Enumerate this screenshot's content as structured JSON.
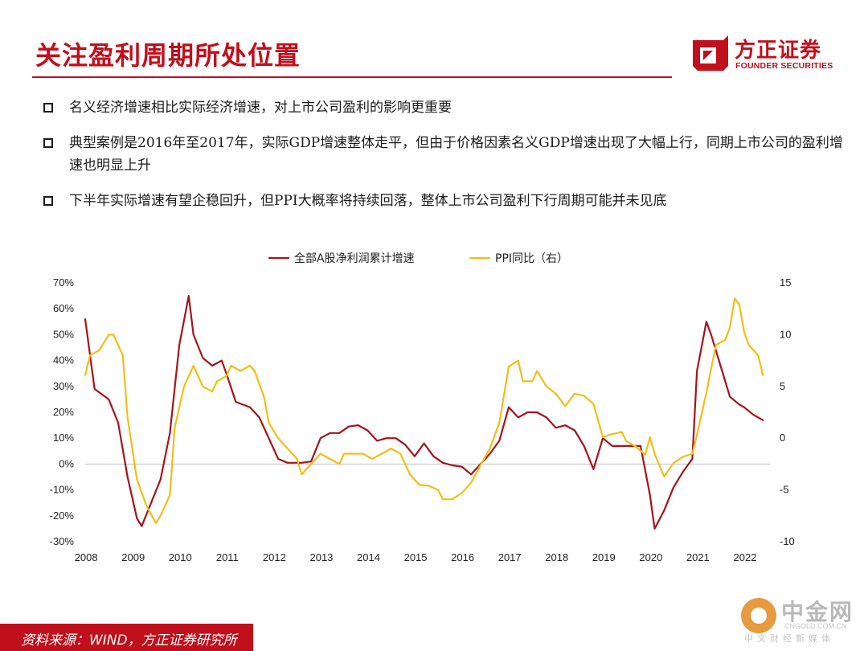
{
  "header": {
    "title": "关注盈利周期所处位置",
    "logo_cn": "方正证券",
    "logo_en": "FOUNDER SECURITIES"
  },
  "bullets": [
    "名义经济增速相比实际经济增速，对上市公司盈利的影响更重要",
    "典型案例是2016年至2017年，实际GDP增速整体走平，但由于价格因素名义GDP增速出现了大幅上行，同期上市公司的盈利增速也明显上升",
    "下半年实际增速有望企稳回升，但PPI大概率将持续回落，整体上市公司盈利下行周期可能并未见底"
  ],
  "footer": {
    "source": "资料来源：WIND，方正证券研究所"
  },
  "watermark": {
    "brand": "中金网",
    "url": "CNGOLD.COM.CN",
    "sub": "中文财经新媒体"
  },
  "colors": {
    "brand_red": "#c0101c",
    "series_profit": "#a5141c",
    "series_ppi": "#f2be1a"
  },
  "chart_data": {
    "type": "line",
    "title": "",
    "legend": [
      "全部A股净利润累计增速",
      "PPI同比（右）"
    ],
    "legend_position": "top",
    "x_ticks": [
      "2008",
      "2009",
      "2010",
      "2011",
      "2012",
      "2013",
      "2014",
      "2015",
      "2016",
      "2017",
      "2018",
      "2019",
      "2020",
      "2021",
      "2022"
    ],
    "y_left": {
      "min": -30,
      "max": 70,
      "ticks": [
        "70%",
        "60%",
        "50%",
        "40%",
        "30%",
        "20%",
        "10%",
        "0%",
        "-10%",
        "-20%",
        "-30%"
      ]
    },
    "y_right": {
      "min": -10,
      "max": 15,
      "ticks": [
        "15",
        "10",
        "5",
        "0",
        "-5",
        "-10"
      ]
    },
    "grid": false,
    "series": [
      {
        "name": "全部A股净利润累计增速",
        "axis": "left",
        "points": [
          [
            2008.0,
            56
          ],
          [
            2008.2,
            29
          ],
          [
            2008.5,
            25
          ],
          [
            2008.7,
            16
          ],
          [
            2008.9,
            -5
          ],
          [
            2009.1,
            -21
          ],
          [
            2009.2,
            -24
          ],
          [
            2009.4,
            -15
          ],
          [
            2009.6,
            -6
          ],
          [
            2009.8,
            12
          ],
          [
            2010.0,
            46
          ],
          [
            2010.2,
            65
          ],
          [
            2010.3,
            50
          ],
          [
            2010.5,
            41
          ],
          [
            2010.7,
            38
          ],
          [
            2010.9,
            40
          ],
          [
            2011.0,
            35
          ],
          [
            2011.2,
            24
          ],
          [
            2011.5,
            22
          ],
          [
            2011.7,
            18
          ],
          [
            2011.9,
            10
          ],
          [
            2012.1,
            2
          ],
          [
            2012.3,
            0.5
          ],
          [
            2012.6,
            0.5
          ],
          [
            2012.8,
            1
          ],
          [
            2013.0,
            10
          ],
          [
            2013.2,
            12
          ],
          [
            2013.4,
            12
          ],
          [
            2013.6,
            14.5
          ],
          [
            2013.8,
            15
          ],
          [
            2014.0,
            13
          ],
          [
            2014.2,
            9
          ],
          [
            2014.4,
            10
          ],
          [
            2014.6,
            10
          ],
          [
            2014.8,
            7.5
          ],
          [
            2015.0,
            3
          ],
          [
            2015.2,
            8
          ],
          [
            2015.4,
            3
          ],
          [
            2015.6,
            0.5
          ],
          [
            2015.8,
            -0.5
          ],
          [
            2016.0,
            -1
          ],
          [
            2016.2,
            -4
          ],
          [
            2016.4,
            0
          ],
          [
            2016.6,
            4
          ],
          [
            2016.8,
            9
          ],
          [
            2017.0,
            22
          ],
          [
            2017.2,
            18
          ],
          [
            2017.4,
            20
          ],
          [
            2017.6,
            20
          ],
          [
            2017.8,
            18
          ],
          [
            2018.0,
            14
          ],
          [
            2018.2,
            15
          ],
          [
            2018.4,
            13
          ],
          [
            2018.6,
            7
          ],
          [
            2018.8,
            -2
          ],
          [
            2019.0,
            10
          ],
          [
            2019.2,
            7
          ],
          [
            2019.4,
            7
          ],
          [
            2019.6,
            7
          ],
          [
            2019.8,
            7
          ],
          [
            2020.0,
            -12
          ],
          [
            2020.1,
            -25
          ],
          [
            2020.3,
            -18
          ],
          [
            2020.5,
            -9
          ],
          [
            2020.7,
            -3
          ],
          [
            2020.9,
            2
          ],
          [
            2021.0,
            36
          ],
          [
            2021.2,
            55
          ],
          [
            2021.3,
            50
          ],
          [
            2021.5,
            38
          ],
          [
            2021.7,
            26
          ],
          [
            2021.9,
            23
          ],
          [
            2022.0,
            22
          ],
          [
            2022.2,
            19
          ],
          [
            2022.4,
            17
          ]
        ]
      },
      {
        "name": "PPI同比（右）",
        "axis": "right",
        "points": [
          [
            2008.0,
            6.1
          ],
          [
            2008.1,
            8
          ],
          [
            2008.3,
            8.5
          ],
          [
            2008.5,
            10
          ],
          [
            2008.6,
            10
          ],
          [
            2008.8,
            8
          ],
          [
            2008.9,
            2
          ],
          [
            2009.1,
            -4
          ],
          [
            2009.3,
            -6.5
          ],
          [
            2009.5,
            -8.2
          ],
          [
            2009.6,
            -7.5
          ],
          [
            2009.8,
            -5.5
          ],
          [
            2009.9,
            1
          ],
          [
            2010.1,
            5
          ],
          [
            2010.3,
            7
          ],
          [
            2010.4,
            6
          ],
          [
            2010.5,
            5
          ],
          [
            2010.7,
            4.5
          ],
          [
            2010.8,
            5.5
          ],
          [
            2011.0,
            6
          ],
          [
            2011.1,
            7
          ],
          [
            2011.3,
            6.5
          ],
          [
            2011.5,
            7
          ],
          [
            2011.6,
            6.5
          ],
          [
            2011.8,
            4
          ],
          [
            2011.9,
            1.5
          ],
          [
            2012.1,
            0
          ],
          [
            2012.3,
            -1
          ],
          [
            2012.5,
            -2
          ],
          [
            2012.6,
            -3.5
          ],
          [
            2012.8,
            -2.5
          ],
          [
            2013.0,
            -1.5
          ],
          [
            2013.2,
            -2
          ],
          [
            2013.4,
            -2.5
          ],
          [
            2013.5,
            -1.5
          ],
          [
            2013.7,
            -1.5
          ],
          [
            2013.9,
            -1.5
          ],
          [
            2014.1,
            -2
          ],
          [
            2014.3,
            -1.5
          ],
          [
            2014.5,
            -1
          ],
          [
            2014.7,
            -1.5
          ],
          [
            2014.9,
            -3.5
          ],
          [
            2015.1,
            -4.5
          ],
          [
            2015.3,
            -4.6
          ],
          [
            2015.5,
            -5
          ],
          [
            2015.6,
            -5.9
          ],
          [
            2015.8,
            -5.9
          ],
          [
            2016.0,
            -5.3
          ],
          [
            2016.2,
            -4.3
          ],
          [
            2016.4,
            -2.6
          ],
          [
            2016.6,
            -1
          ],
          [
            2016.8,
            1.5
          ],
          [
            2017.0,
            6.9
          ],
          [
            2017.2,
            7.5
          ],
          [
            2017.3,
            5.5
          ],
          [
            2017.5,
            5.5
          ],
          [
            2017.6,
            6.5
          ],
          [
            2017.8,
            5
          ],
          [
            2018.0,
            4.3
          ],
          [
            2018.2,
            3.1
          ],
          [
            2018.4,
            4.3
          ],
          [
            2018.6,
            4.1
          ],
          [
            2018.8,
            3.3
          ],
          [
            2019.0,
            0.1
          ],
          [
            2019.2,
            0.4
          ],
          [
            2019.4,
            0.6
          ],
          [
            2019.5,
            -0.3
          ],
          [
            2019.7,
            -0.8
          ],
          [
            2019.9,
            -1.6
          ],
          [
            2020.0,
            0.1
          ],
          [
            2020.1,
            -1.5
          ],
          [
            2020.3,
            -3.7
          ],
          [
            2020.5,
            -2.4
          ],
          [
            2020.7,
            -1.8
          ],
          [
            2020.9,
            -1.5
          ],
          [
            2021.0,
            0.3
          ],
          [
            2021.2,
            4.4
          ],
          [
            2021.4,
            9
          ],
          [
            2021.6,
            9.5
          ],
          [
            2021.7,
            10.7
          ],
          [
            2021.8,
            13.5
          ],
          [
            2021.9,
            12.9
          ],
          [
            2022.0,
            10.3
          ],
          [
            2022.1,
            9
          ],
          [
            2022.3,
            8
          ],
          [
            2022.4,
            6.1
          ]
        ]
      }
    ]
  }
}
